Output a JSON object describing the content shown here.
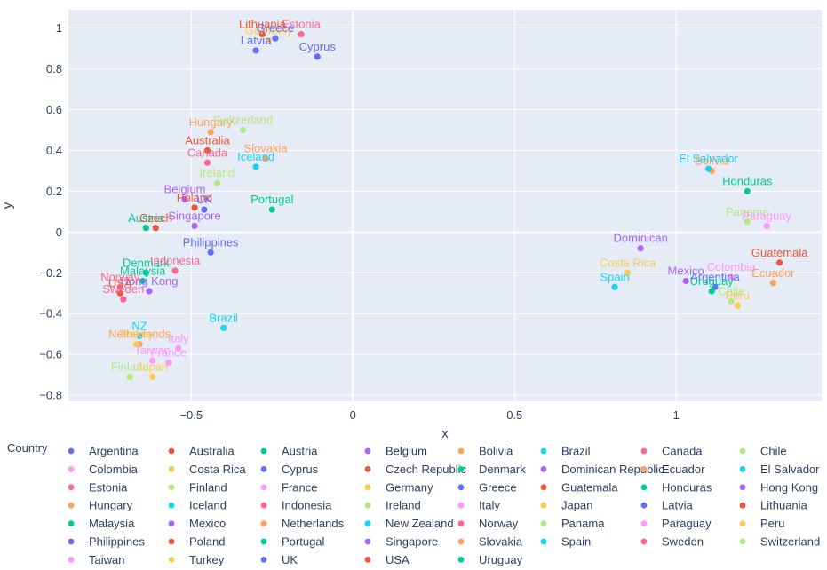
{
  "chart_data": {
    "type": "scatter",
    "xlabel": "x",
    "ylabel": "y",
    "xlim": [
      -0.88,
      1.45
    ],
    "ylim": [
      -0.83,
      1.09
    ],
    "x_ticks": [
      -0.5,
      0,
      0.5,
      1
    ],
    "x_tick_labels": [
      "−0.5",
      "0",
      "0.5",
      "1"
    ],
    "y_ticks": [
      -0.8,
      -0.6,
      -0.4,
      -0.2,
      0,
      0.2,
      0.4,
      0.6,
      0.8,
      1
    ],
    "y_tick_labels": [
      "−0.8",
      "−0.6",
      "−0.4",
      "−0.2",
      "0",
      "0.2",
      "0.4",
      "0.6",
      "0.8",
      "1"
    ],
    "grid": true,
    "legend_title": "Country",
    "legend_position": "bottom",
    "series": [
      {
        "name": "Argentina",
        "color": "#636efa",
        "x": 1.12,
        "y": -0.27,
        "label": "Argentina"
      },
      {
        "name": "Australia",
        "color": "#EF553B",
        "x": -0.45,
        "y": 0.4,
        "label": "Australia"
      },
      {
        "name": "Austria",
        "color": "#00cc96",
        "x": -0.64,
        "y": 0.02,
        "label": "Austria"
      },
      {
        "name": "Belgium",
        "color": "#ab63fa",
        "x": -0.52,
        "y": 0.16,
        "label": "Belgium"
      },
      {
        "name": "Bolivia",
        "color": "#FFA15A",
        "x": 1.11,
        "y": 0.3,
        "label": "Bolivia"
      },
      {
        "name": "Brazil",
        "color": "#19d3f3",
        "x": -0.4,
        "y": -0.47,
        "label": "Brazil"
      },
      {
        "name": "Canada",
        "color": "#FF6692",
        "x": -0.45,
        "y": 0.34,
        "label": "Canada"
      },
      {
        "name": "Chile",
        "color": "#B6E880",
        "x": 1.17,
        "y": -0.34,
        "label": "Chile"
      },
      {
        "name": "Colombia",
        "color": "#FF97FF",
        "x": 1.17,
        "y": -0.22,
        "label": "Colombia"
      },
      {
        "name": "Costa Rica",
        "color": "#FECB52",
        "x": 0.85,
        "y": -0.2,
        "label": "Costa Rica"
      },
      {
        "name": "Cyprus",
        "color": "#636efa",
        "x": -0.11,
        "y": 0.86,
        "label": "Cyprus"
      },
      {
        "name": "Czech Republic",
        "color": "#EF553B",
        "x": -0.61,
        "y": 0.02,
        "label": "Czech"
      },
      {
        "name": "Denmark",
        "color": "#00cc96",
        "x": -0.64,
        "y": -0.2,
        "label": "Denmark"
      },
      {
        "name": "Dominican Republic",
        "color": "#ab63fa",
        "x": 0.89,
        "y": -0.08,
        "label": "Dominican"
      },
      {
        "name": "Ecuador",
        "color": "#FFA15A",
        "x": 1.3,
        "y": -0.25,
        "label": "Ecuador"
      },
      {
        "name": "El Salvador",
        "color": "#19d3f3",
        "x": 1.1,
        "y": 0.31,
        "label": "El Salvador"
      },
      {
        "name": "Estonia",
        "color": "#FF6692",
        "x": -0.16,
        "y": 0.97,
        "label": "Estonia"
      },
      {
        "name": "Finland",
        "color": "#B6E880",
        "x": -0.69,
        "y": -0.71,
        "label": "Finland"
      },
      {
        "name": "France",
        "color": "#FF97FF",
        "x": -0.57,
        "y": -0.64,
        "label": "France"
      },
      {
        "name": "Germany",
        "color": "#FECB52",
        "x": -0.26,
        "y": 0.94,
        "label": "Germany"
      },
      {
        "name": "Greece",
        "color": "#636efa",
        "x": -0.24,
        "y": 0.95,
        "label": "Greece"
      },
      {
        "name": "Guatemala",
        "color": "#EF553B",
        "x": 1.32,
        "y": -0.15,
        "label": "Guatemala"
      },
      {
        "name": "Honduras",
        "color": "#00cc96",
        "x": 1.22,
        "y": 0.2,
        "label": "Honduras"
      },
      {
        "name": "Hong Kong",
        "color": "#ab63fa",
        "x": -0.63,
        "y": -0.29,
        "label": "Hong Kong"
      },
      {
        "name": "Hungary",
        "color": "#FFA15A",
        "x": -0.44,
        "y": 0.49,
        "label": "Hungary"
      },
      {
        "name": "Iceland",
        "color": "#19d3f3",
        "x": -0.3,
        "y": 0.32,
        "label": "Iceland"
      },
      {
        "name": "Indonesia",
        "color": "#FF6692",
        "x": -0.55,
        "y": -0.19,
        "label": "Indonesia"
      },
      {
        "name": "Ireland",
        "color": "#B6E880",
        "x": -0.42,
        "y": 0.24,
        "label": "Ireland"
      },
      {
        "name": "Italy",
        "color": "#FF97FF",
        "x": -0.54,
        "y": -0.57,
        "label": "Italy"
      },
      {
        "name": "Japan",
        "color": "#FECB52",
        "x": -0.62,
        "y": -0.71,
        "label": "Japan"
      },
      {
        "name": "Latvia",
        "color": "#636efa",
        "x": -0.3,
        "y": 0.89,
        "label": "Latvia"
      },
      {
        "name": "Lithuania",
        "color": "#EF553B",
        "x": -0.28,
        "y": 0.97,
        "label": "Lithuania"
      },
      {
        "name": "Malaysia",
        "color": "#00cc96",
        "x": -0.65,
        "y": -0.24,
        "label": "Malaysia"
      },
      {
        "name": "Mexico",
        "color": "#ab63fa",
        "x": 1.03,
        "y": -0.24,
        "label": "Mexico"
      },
      {
        "name": "Netherlands",
        "color": "#FFA15A",
        "x": -0.66,
        "y": -0.55,
        "label": "Netherlands"
      },
      {
        "name": "New Zealand",
        "color": "#19d3f3",
        "x": -0.66,
        "y": -0.51,
        "label": "NZ"
      },
      {
        "name": "Norway",
        "color": "#FF6692",
        "x": -0.72,
        "y": -0.27,
        "label": "Norway"
      },
      {
        "name": "Panama",
        "color": "#B6E880",
        "x": 1.22,
        "y": 0.05,
        "label": "Panama"
      },
      {
        "name": "Paraguay",
        "color": "#FF97FF",
        "x": 1.28,
        "y": 0.03,
        "label": "Paraguay"
      },
      {
        "name": "Peru",
        "color": "#FECB52",
        "x": 1.19,
        "y": -0.36,
        "label": "Peru"
      },
      {
        "name": "Philippines",
        "color": "#636efa",
        "x": -0.44,
        "y": -0.1,
        "label": "Philippines"
      },
      {
        "name": "Poland",
        "color": "#EF553B",
        "x": -0.49,
        "y": 0.12,
        "label": "Poland"
      },
      {
        "name": "Portugal",
        "color": "#00cc96",
        "x": -0.25,
        "y": 0.11,
        "label": "Portugal"
      },
      {
        "name": "Singapore",
        "color": "#ab63fa",
        "x": -0.49,
        "y": 0.03,
        "label": "Singapore"
      },
      {
        "name": "Slovakia",
        "color": "#FFA15A",
        "x": -0.27,
        "y": 0.36,
        "label": "Slovakia"
      },
      {
        "name": "Spain",
        "color": "#19d3f3",
        "x": 0.81,
        "y": -0.27,
        "label": "Spain"
      },
      {
        "name": "Sweden",
        "color": "#FF6692",
        "x": -0.71,
        "y": -0.33,
        "label": "Sweden"
      },
      {
        "name": "Switzerland",
        "color": "#B6E880",
        "x": -0.34,
        "y": 0.5,
        "label": "Switzerland"
      },
      {
        "name": "Taiwan",
        "color": "#FF97FF",
        "x": -0.62,
        "y": -0.63,
        "label": "Taiwan"
      },
      {
        "name": "Turkey",
        "color": "#FECB52",
        "x": -0.67,
        "y": -0.55,
        "label": "Turkey"
      },
      {
        "name": "UK",
        "color": "#636efa",
        "x": -0.46,
        "y": 0.11,
        "label": "UK"
      },
      {
        "name": "USA",
        "color": "#EF553B",
        "x": -0.72,
        "y": -0.3,
        "label": "USA"
      },
      {
        "name": "Uruguay",
        "color": "#00cc96",
        "x": 1.11,
        "y": -0.29,
        "label": "Uruguay"
      }
    ]
  }
}
